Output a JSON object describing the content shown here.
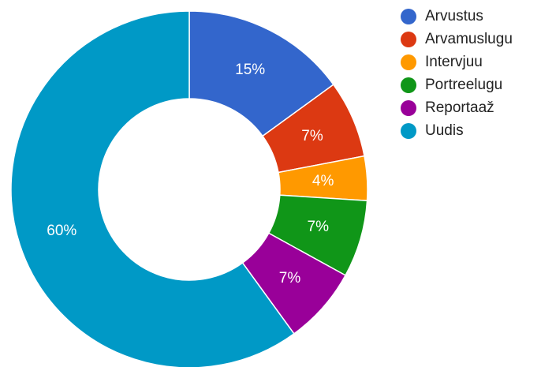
{
  "chart_data": {
    "type": "pie",
    "title": "",
    "donut": true,
    "legend_position": "right",
    "slices": [
      {
        "name": "Arvustus",
        "value": 15,
        "label": "15%",
        "color": "#3366cc"
      },
      {
        "name": "Arvamuslugu",
        "value": 7,
        "label": "7%",
        "color": "#dc3912"
      },
      {
        "name": "Intervjuu",
        "value": 4,
        "label": "4%",
        "color": "#ff9900"
      },
      {
        "name": "Portreelugu",
        "value": 7,
        "label": "7%",
        "color": "#109618"
      },
      {
        "name": "Reportaaž",
        "value": 7,
        "label": "7%",
        "color": "#990099"
      },
      {
        "name": "Uudis",
        "value": 60,
        "label": "60%",
        "color": "#0099c6"
      }
    ]
  }
}
